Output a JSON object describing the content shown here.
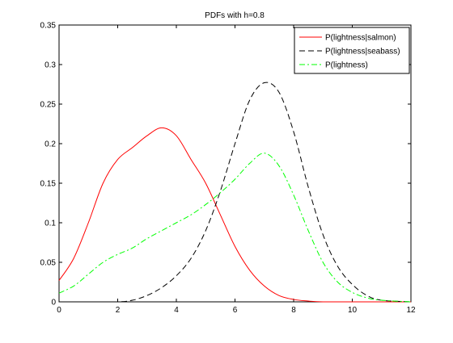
{
  "chart_data": {
    "type": "line",
    "title": "PDFs with h=0.8",
    "xlabel": "",
    "ylabel": "",
    "xlim": [
      0,
      12
    ],
    "ylim": [
      0,
      0.35
    ],
    "xticks": [
      0,
      2,
      4,
      6,
      8,
      10,
      12
    ],
    "yticks": [
      0,
      0.05,
      0.1,
      0.15,
      0.2,
      0.25,
      0.3,
      0.35
    ],
    "xtick_labels": [
      "0",
      "2",
      "4",
      "6",
      "8",
      "10",
      "12"
    ],
    "ytick_labels": [
      "0",
      "0.05",
      "0.1",
      "0.15",
      "0.2",
      "0.25",
      "0.3",
      "0.35"
    ],
    "grid": false,
    "legend_position": "top-right",
    "series": [
      {
        "name": "P(lightness|salmon)",
        "color": "#ff0000",
        "line_style": "solid",
        "x": [
          0,
          0.5,
          1,
          1.5,
          2,
          2.5,
          3,
          3.5,
          4,
          4.5,
          5,
          5.5,
          6,
          6.5,
          7,
          7.5,
          8,
          8.5,
          9,
          10,
          11,
          12
        ],
        "y": [
          0.027,
          0.055,
          0.1,
          0.15,
          0.18,
          0.195,
          0.21,
          0.22,
          0.21,
          0.18,
          0.15,
          0.11,
          0.07,
          0.04,
          0.02,
          0.008,
          0.003,
          0.001,
          0.0,
          0.0,
          0.0,
          0.0
        ]
      },
      {
        "name": "P(lightness|seabass)",
        "color": "#000000",
        "line_style": "dashed",
        "x": [
          0,
          1,
          2,
          2.5,
          3,
          3.5,
          4,
          4.5,
          5,
          5.5,
          6,
          6.5,
          7,
          7.5,
          8,
          8.5,
          9,
          9.5,
          10,
          10.5,
          11,
          12
        ],
        "y": [
          0.0,
          0.0,
          0.0,
          0.002,
          0.008,
          0.018,
          0.033,
          0.055,
          0.09,
          0.14,
          0.2,
          0.255,
          0.277,
          0.265,
          0.215,
          0.145,
          0.085,
          0.045,
          0.022,
          0.008,
          0.002,
          0.0
        ]
      },
      {
        "name": "P(lightness)",
        "color": "#00ff00",
        "line_style": "dashdot",
        "x": [
          0,
          0.5,
          1,
          1.5,
          2,
          2.5,
          3,
          3.5,
          4,
          4.5,
          5,
          5.5,
          6,
          6.5,
          7,
          7.5,
          8,
          8.5,
          9,
          9.5,
          10,
          10.5,
          11,
          12
        ],
        "y": [
          0.011,
          0.02,
          0.035,
          0.05,
          0.06,
          0.068,
          0.08,
          0.09,
          0.1,
          0.11,
          0.123,
          0.138,
          0.155,
          0.175,
          0.188,
          0.172,
          0.135,
          0.09,
          0.05,
          0.025,
          0.012,
          0.005,
          0.002,
          0.0
        ]
      }
    ]
  }
}
